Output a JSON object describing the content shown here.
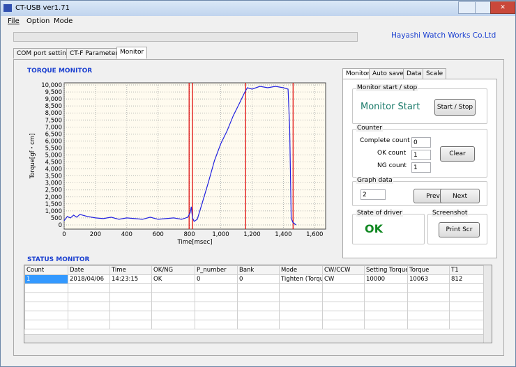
{
  "window": {
    "title": "CT-USB   ver1.71",
    "menu": [
      "File",
      "Option",
      "Mode"
    ],
    "company": "Hayashi Watch Works Co.Ltd"
  },
  "tabs": [
    "COM port setting",
    "CT-F Parameter",
    "Monitor"
  ],
  "torque_section": "TORQUE MONITOR",
  "chart_data": {
    "type": "line",
    "xlabel": "Time[msec]",
    "ylabel": "Torque[gf・cm]",
    "color": "#2020e0",
    "grid": true,
    "x": [
      0,
      20,
      40,
      60,
      80,
      100,
      150,
      200,
      250,
      300,
      350,
      400,
      450,
      500,
      550,
      600,
      650,
      700,
      750,
      790,
      805,
      812,
      820,
      830,
      850,
      880,
      920,
      960,
      1000,
      1040,
      1080,
      1120,
      1150,
      1170,
      1200,
      1250,
      1300,
      1350,
      1400,
      1430,
      1440,
      1450,
      1460,
      1480
    ],
    "values": [
      300,
      600,
      500,
      700,
      550,
      750,
      600,
      500,
      450,
      550,
      400,
      500,
      450,
      400,
      550,
      400,
      450,
      500,
      400,
      550,
      900,
      1300,
      500,
      250,
      400,
      1500,
      3000,
      4600,
      5800,
      6700,
      7800,
      8700,
      9400,
      9800,
      9700,
      9900,
      9800,
      9900,
      9800,
      9700,
      7000,
      500,
      200,
      0
    ],
    "markers": [
      798,
      820,
      1159,
      1462
    ],
    "marker_color": "#e00000",
    "xlim": [
      0,
      1670
    ],
    "ylim": [
      -300,
      10150
    ],
    "xticks": [
      0,
      200,
      400,
      600,
      800,
      {
        "value": 1000,
        "label": "1,000"
      },
      {
        "value": 1200,
        "label": "1,200"
      },
      {
        "value": 1400,
        "label": "1,400"
      },
      {
        "value": 1600,
        "label": "1,600"
      }
    ],
    "yticks": [
      0,
      500,
      {
        "value": 1000,
        "label": "1,000"
      },
      {
        "value": 1500,
        "label": "1,500"
      },
      {
        "value": 2000,
        "label": "2,000"
      },
      {
        "value": 2500,
        "label": "2,500"
      },
      {
        "value": 3000,
        "label": "3,000"
      },
      {
        "value": 3500,
        "label": "3,500"
      },
      {
        "value": 4000,
        "label": "4,000"
      },
      {
        "value": 4500,
        "label": "4,500"
      },
      {
        "value": 5000,
        "label": "5,000"
      },
      {
        "value": 5500,
        "label": "5,500"
      },
      {
        "value": 6000,
        "label": "6,000"
      },
      {
        "value": 6500,
        "label": "6,500"
      },
      {
        "value": 7000,
        "label": "7,000"
      },
      {
        "value": 7500,
        "label": "7,500"
      },
      {
        "value": 8000,
        "label": "8,000"
      },
      {
        "value": 8500,
        "label": "8,500"
      },
      {
        "value": 9000,
        "label": "9,000"
      },
      {
        "value": 9500,
        "label": "9,500"
      },
      {
        "value": 10000,
        "label": "10,000"
      }
    ]
  },
  "panel": {
    "tabs": [
      "Monitor",
      "Auto save",
      "Data",
      "Scale"
    ],
    "monitor_group": "Monitor start / stop",
    "monitor_state": "Monitor Start",
    "start_stop": "Start / Stop",
    "counter_group": "Counter",
    "complete_label": "Complete count",
    "complete": "0",
    "ok_label": "OK count",
    "ok": "1",
    "ng_label": "NG count",
    "ng": "1",
    "clear": "Clear",
    "graph_group": "Graph data",
    "graph_no": "2",
    "prev": "Prev",
    "next": "Next",
    "driver_group": "State of driver",
    "driver_state": "OK",
    "screenshot_group": "Screenshot",
    "print": "Print Scr"
  },
  "status_section": "STATUS MONITOR",
  "table": {
    "headers": [
      "Count",
      "Date",
      "Time",
      "OK/NG",
      "P_number",
      "Bank",
      "Mode",
      "CW/CCW",
      "Setting Torque",
      "Torque",
      "T1"
    ],
    "rows": [
      [
        "1",
        "2018/04/06",
        "14:23:15",
        "OK",
        "0",
        "0",
        "Tighten (Torque",
        "CW",
        "10000",
        "10063",
        "812"
      ]
    ]
  }
}
